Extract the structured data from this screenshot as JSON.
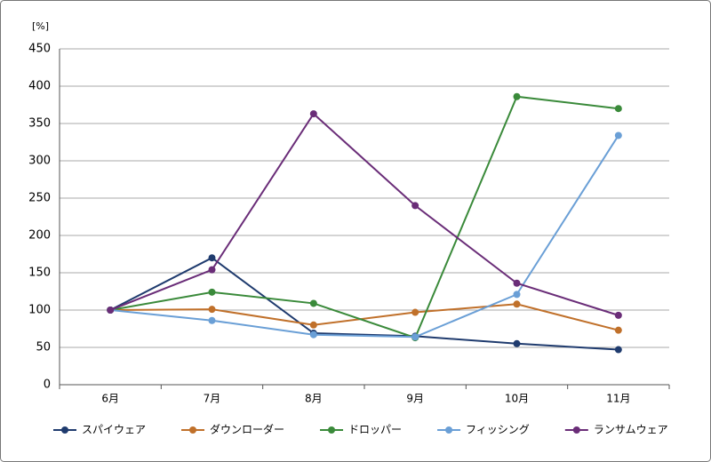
{
  "chart_data": {
    "type": "line",
    "y_label": "[%]",
    "categories": [
      "6月",
      "7月",
      "8月",
      "9月",
      "10月",
      "11月"
    ],
    "series": [
      {
        "name": "スパイウェア",
        "color": "#1f3b6e",
        "values": [
          100,
          170,
          69,
          65,
          55,
          47
        ]
      },
      {
        "name": "ダウンローダー",
        "color": "#c0702a",
        "values": [
          100,
          101,
          80,
          97,
          108,
          73
        ]
      },
      {
        "name": "ドロッパー",
        "color": "#3a8a3a",
        "values": [
          100,
          124,
          109,
          63,
          386,
          370
        ]
      },
      {
        "name": "フィッシング",
        "color": "#6a9fd6",
        "values": [
          100,
          86,
          67,
          64,
          121,
          334
        ]
      },
      {
        "name": "ランサムウェア",
        "color": "#6a2d78",
        "values": [
          100,
          154,
          363,
          240,
          136,
          93
        ]
      }
    ],
    "ylim": [
      0,
      450
    ],
    "yticks": [
      0,
      50,
      100,
      150,
      200,
      250,
      300,
      350,
      400,
      450
    ],
    "grid": true,
    "legend": "bottom"
  }
}
